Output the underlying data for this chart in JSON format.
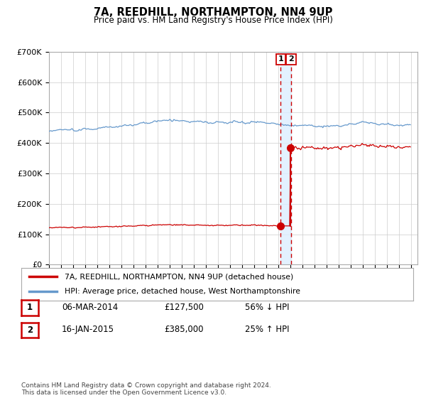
{
  "title": "7A, REEDHILL, NORTHAMPTON, NN4 9UP",
  "subtitle": "Price paid vs. HM Land Registry's House Price Index (HPI)",
  "legend_line1": "7A, REEDHILL, NORTHAMPTON, NN4 9UP (detached house)",
  "legend_line2": "HPI: Average price, detached house, West Northamptonshire",
  "table_row1": [
    "1",
    "06-MAR-2014",
    "£127,500",
    "56% ↓ HPI"
  ],
  "table_row2": [
    "2",
    "16-JAN-2015",
    "£385,000",
    "25% ↑ HPI"
  ],
  "footnote": "Contains HM Land Registry data © Crown copyright and database right 2024.\nThis data is licensed under the Open Government Licence v3.0.",
  "hpi_color": "#6699cc",
  "price_color": "#cc0000",
  "vline_color": "#cc0000",
  "highlight_bg": "#ddeeff",
  "point1_year": 2014.17,
  "point1_price": 127500,
  "point2_year": 2015.04,
  "point2_price": 385000,
  "ylim_max": 700000,
  "ylim_min": 0,
  "xlim_min": 1995.0,
  "xlim_max": 2025.5,
  "vline_x1": 2014.17,
  "vline_x2": 2015.04
}
